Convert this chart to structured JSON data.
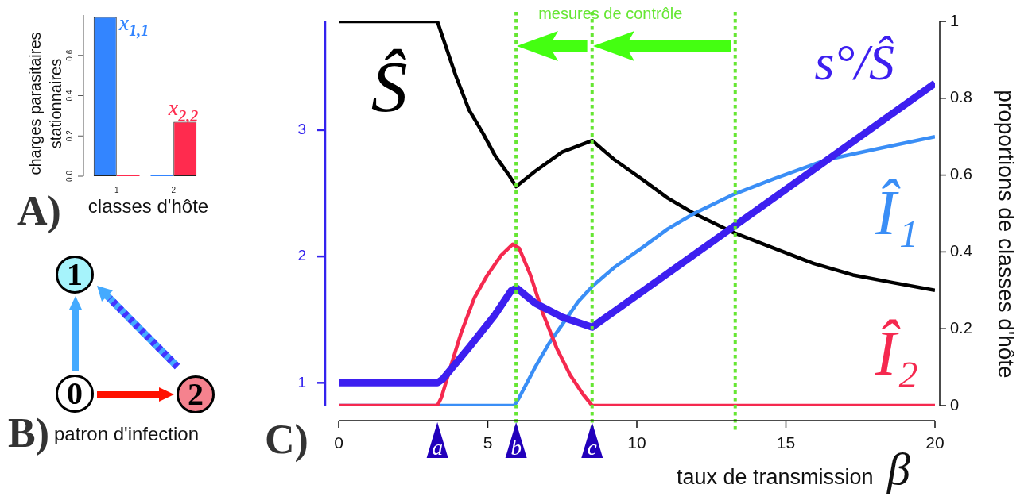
{
  "chart_data": [
    {
      "type": "bar",
      "categories": [
        "1",
        "2"
      ],
      "series": [
        {
          "color": "#3385ff",
          "values": [
            0.79,
            0
          ]
        },
        {
          "color": "#ff2b4e",
          "values": [
            0,
            0.27
          ]
        }
      ],
      "xlabel": "classes d'hôte",
      "ylabel": "charges parasitaires stationnaires",
      "ylim": [
        0,
        0.8
      ],
      "yticks": [
        {
          "value": 0,
          "label": "0.0"
        },
        0.2,
        0.4,
        0.6
      ],
      "annotations": [
        "A)",
        {
          "text": "x$_{1,1}$",
          "x": "1",
          "y": 0.79
        },
        {
          "text": "x$_{2,2}$",
          "x": "2",
          "y": 0.27
        }
      ]
    },
    {
      "type": "other",
      "title": "patron d'infection",
      "categories": [
        "0",
        "1",
        "2"
      ],
      "colors": [
        "#ffffff",
        "#a6f3fb",
        "#f5828e"
      ],
      "annotations": [
        "B)"
      ]
    },
    {
      "type": "line",
      "xlabel": "taux de transmission β",
      "ylabel": "proportions de classes d'hôte",
      "xlim": [
        0,
        20
      ],
      "xticks": [
        0,
        5,
        10,
        15,
        20
      ],
      "ylim": [
        0,
        1
      ],
      "yticks": [
        0,
        0.2,
        0.4,
        0.6,
        0.8,
        1
      ],
      "y2lim": [
        0.82,
        3.86
      ],
      "y2ticks": [
        1,
        2,
        3
      ],
      "series": [
        {
          "name": "Ŝ",
          "color": "#000000",
          "x": [
            0,
            3.31,
            3.44,
            3.92,
            4.37,
            4.83,
            5.25,
            5.71,
            5.95,
            6.59,
            7.49,
            8.5,
            9.25,
            10.16,
            11.04,
            11.92,
            13.25,
            14.59,
            15.92,
            17.25,
            18.59,
            20
          ],
          "values": [
            1,
            1,
            0.97,
            0.86,
            0.77,
            0.71,
            0.65,
            0.6,
            0.57,
            0.61,
            0.66,
            0.69,
            0.64,
            0.59,
            0.54,
            0.5,
            0.45,
            0.41,
            0.37,
            0.34,
            0.32,
            0.3
          ]
        },
        {
          "name": "Î₁",
          "color": "#3a8ef6",
          "x": [
            0,
            5.89,
            6.05,
            6.59,
            7.04,
            7.49,
            8.03,
            8.5,
            9.25,
            10.16,
            11.04,
            11.92,
            13.25,
            14.59,
            16.37,
            18.16,
            20
          ],
          "values": [
            0,
            0,
            0.02,
            0.1,
            0.16,
            0.21,
            0.27,
            0.31,
            0.36,
            0.41,
            0.46,
            0.5,
            0.55,
            0.59,
            0.64,
            0.67,
            0.7
          ]
        },
        {
          "name": "Î₂",
          "color": "#f5294f",
          "x": [
            0,
            3.31,
            3.44,
            3.75,
            4.11,
            4.55,
            4.99,
            5.44,
            5.84,
            6.05,
            6.43,
            6.85,
            7.31,
            7.76,
            8.19,
            8.5,
            20
          ],
          "values": [
            0,
            0,
            0.02,
            0.1,
            0.19,
            0.28,
            0.34,
            0.39,
            0.42,
            0.41,
            0.34,
            0.24,
            0.15,
            0.08,
            0.03,
            0,
            0
          ]
        },
        {
          "name": "s°/Ŝ",
          "color": "#3d1ff0",
          "axis": "y2",
          "x": [
            0,
            3.31,
            3.49,
            4.37,
            5.25,
            5.79,
            5.97,
            6.59,
            7.49,
            8.5,
            20
          ],
          "values": [
            1,
            1,
            1.03,
            1.28,
            1.54,
            1.73,
            1.75,
            1.63,
            1.52,
            1.44,
            3.37
          ]
        }
      ],
      "ref_lines": [
        {
          "axis": "x",
          "value": 5.95,
          "color": "#66e633",
          "line_style": "dotted"
        },
        {
          "axis": "x",
          "value": 8.5,
          "color": "#66e633",
          "line_style": "dotted"
        },
        {
          "axis": "x",
          "value": 13.3,
          "color": "#66e633",
          "line_style": "dotted"
        }
      ],
      "annotations": [
        "C)",
        "mesures de contrôle",
        {
          "text": "a",
          "x": 3.31,
          "y": 0
        },
        {
          "text": "b",
          "x": 5.95,
          "y": 0
        },
        {
          "text": "c",
          "x": 8.5,
          "y": 0
        }
      ]
    }
  ]
}
